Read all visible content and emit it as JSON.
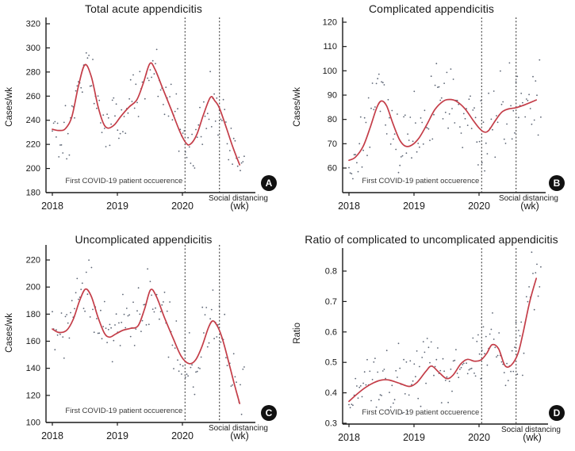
{
  "figure": {
    "background": "#ffffff"
  },
  "colors": {
    "trend_line": "#c43d48",
    "scatter_point": "#4b5566",
    "axis": "#1a1a1a",
    "event_line": "#2b2b2b",
    "badge_bg": "#111111",
    "badge_fg": "#ffffff",
    "text": "#1a1a1a"
  },
  "chart_data": [
    {
      "id": "panel-a",
      "badge": "A",
      "type": "scatter+smoothed-line",
      "title": "Total acute appendicitis",
      "ylabel": "Cases/wk",
      "x_unit_label": "(wk)",
      "xtick_values": [
        2018,
        2019,
        2020
      ],
      "xtick_labels": [
        "2018",
        "2019",
        "2020"
      ],
      "ylim": [
        180,
        320
      ],
      "ytick_values": [
        180,
        200,
        220,
        240,
        260,
        280,
        300,
        320
      ],
      "ytick_labels": [
        "180",
        "200",
        "220",
        "240",
        "260",
        "280",
        "300",
        "320"
      ],
      "x_range_data": [
        2018.0,
        2020.95
      ],
      "legend": "none",
      "grid": false,
      "events": [
        {
          "x": 2020.04,
          "label": "First COVID-19 patient occuerence",
          "label_position": "inside-left-of-line"
        },
        {
          "x": 2020.57,
          "label": "Social distancing",
          "label_position": "below-axis-right"
        }
      ],
      "trend_line": {
        "name": "smoothed weekly trend",
        "points": [
          [
            2018.0,
            232.5
          ],
          [
            2018.1,
            231.5
          ],
          [
            2018.2,
            233
          ],
          [
            2018.3,
            243
          ],
          [
            2018.4,
            268
          ],
          [
            2018.5,
            286
          ],
          [
            2018.6,
            276
          ],
          [
            2018.7,
            252
          ],
          [
            2018.78,
            238
          ],
          [
            2018.85,
            233.5
          ],
          [
            2018.95,
            236
          ],
          [
            2019.05,
            243
          ],
          [
            2019.18,
            251
          ],
          [
            2019.3,
            257
          ],
          [
            2019.4,
            271
          ],
          [
            2019.5,
            287
          ],
          [
            2019.58,
            282
          ],
          [
            2019.7,
            266
          ],
          [
            2019.82,
            250
          ],
          [
            2019.95,
            232
          ],
          [
            2020.05,
            221.5
          ],
          [
            2020.12,
            220
          ],
          [
            2020.22,
            228
          ],
          [
            2020.32,
            244
          ],
          [
            2020.43,
            259
          ],
          [
            2020.5,
            256
          ],
          [
            2020.57,
            250
          ],
          [
            2020.68,
            233
          ],
          [
            2020.78,
            217
          ],
          [
            2020.88,
            203
          ]
        ]
      },
      "scatter": {
        "name": "weekly case counts",
        "count": 148,
        "noise_sd": 12,
        "seed": 101,
        "clamp": [
          183,
          321
        ]
      }
    },
    {
      "id": "panel-b",
      "badge": "B",
      "type": "scatter+smoothed-line",
      "title": "Complicated appendicitis",
      "ylabel": "Cases/wk",
      "x_unit_label": "(wk)",
      "xtick_values": [
        2018,
        2019,
        2020
      ],
      "xtick_labels": [
        "2018",
        "2019",
        "2020"
      ],
      "ylim": [
        50,
        122
      ],
      "ytick_values": [
        60,
        70,
        80,
        90,
        100,
        110,
        120
      ],
      "ytick_labels": [
        "60",
        "70",
        "80",
        "90",
        "100",
        "110",
        "120"
      ],
      "x_range_data": [
        2018.0,
        2020.95
      ],
      "legend": "none",
      "grid": false,
      "events": [
        {
          "x": 2020.04,
          "label": "First COVID-19 patient occuerence",
          "label_position": "inside-left-of-line"
        },
        {
          "x": 2020.57,
          "label": "Social distancing",
          "label_position": "below-axis-right"
        }
      ],
      "trend_line": {
        "name": "smoothed weekly trend",
        "points": [
          [
            2018.0,
            63.2
          ],
          [
            2018.1,
            64.5
          ],
          [
            2018.22,
            69
          ],
          [
            2018.33,
            77
          ],
          [
            2018.43,
            85
          ],
          [
            2018.5,
            87.6
          ],
          [
            2018.58,
            85.5
          ],
          [
            2018.68,
            78
          ],
          [
            2018.78,
            71.5
          ],
          [
            2018.87,
            69
          ],
          [
            2018.97,
            69.5
          ],
          [
            2019.08,
            72.5
          ],
          [
            2019.2,
            78
          ],
          [
            2019.32,
            84
          ],
          [
            2019.45,
            87.5
          ],
          [
            2019.55,
            88.2
          ],
          [
            2019.65,
            87.5
          ],
          [
            2019.78,
            84.5
          ],
          [
            2019.9,
            80
          ],
          [
            2020.0,
            76.5
          ],
          [
            2020.08,
            74.8
          ],
          [
            2020.15,
            75.5
          ],
          [
            2020.25,
            79.5
          ],
          [
            2020.35,
            83
          ],
          [
            2020.45,
            84.3
          ],
          [
            2020.57,
            84.8
          ],
          [
            2020.7,
            86
          ],
          [
            2020.88,
            88
          ]
        ]
      },
      "scatter": {
        "name": "weekly case counts",
        "count": 148,
        "noise_sd": 8,
        "seed": 202,
        "clamp": [
          53,
          120
        ]
      }
    },
    {
      "id": "panel-c",
      "badge": "C",
      "type": "scatter+smoothed-line",
      "title": "Uncomplicated appendicitis",
      "ylabel": "Cases/wk",
      "x_unit_label": "(wk)",
      "xtick_values": [
        2018,
        2019,
        2020
      ],
      "xtick_labels": [
        "2018",
        "2019",
        "2020"
      ],
      "ylim": [
        100,
        220
      ],
      "ytick_values": [
        100,
        120,
        140,
        160,
        180,
        200,
        220
      ],
      "ytick_labels": [
        "100",
        "120",
        "140",
        "160",
        "180",
        "200",
        "220"
      ],
      "x_range_data": [
        2018.0,
        2020.95
      ],
      "legend": "none",
      "grid": false,
      "events": [
        {
          "x": 2020.04,
          "label": "First COVID-19 patient occuerence",
          "label_position": "inside-left-of-line"
        },
        {
          "x": 2020.57,
          "label": "Social distancing",
          "label_position": "below-axis-right"
        }
      ],
      "trend_line": {
        "name": "smoothed weekly trend",
        "points": [
          [
            2018.0,
            169
          ],
          [
            2018.1,
            166.5
          ],
          [
            2018.22,
            168
          ],
          [
            2018.32,
            176
          ],
          [
            2018.42,
            190
          ],
          [
            2018.51,
            198.5
          ],
          [
            2018.6,
            193
          ],
          [
            2018.7,
            178
          ],
          [
            2018.8,
            166
          ],
          [
            2018.88,
            163
          ],
          [
            2018.98,
            165.5
          ],
          [
            2019.08,
            168
          ],
          [
            2019.2,
            169.5
          ],
          [
            2019.32,
            171.5
          ],
          [
            2019.42,
            184
          ],
          [
            2019.51,
            198
          ],
          [
            2019.6,
            193
          ],
          [
            2019.72,
            178
          ],
          [
            2019.85,
            163
          ],
          [
            2019.98,
            149
          ],
          [
            2020.1,
            143.5
          ],
          [
            2020.2,
            146
          ],
          [
            2020.3,
            156
          ],
          [
            2020.4,
            170
          ],
          [
            2020.47,
            175
          ],
          [
            2020.55,
            170
          ],
          [
            2020.62,
            161
          ],
          [
            2020.72,
            143
          ],
          [
            2020.8,
            128
          ],
          [
            2020.88,
            114
          ]
        ]
      },
      "scatter": {
        "name": "weekly case counts",
        "count": 148,
        "noise_sd": 11,
        "seed": 303,
        "clamp": [
          106,
          227
        ]
      }
    },
    {
      "id": "panel-d",
      "badge": "D",
      "type": "scatter+smoothed-line",
      "title": "Ratio of complicated to uncomplicated appendicitis",
      "ylabel": "Ratio",
      "x_unit_label": "(wk)",
      "xtick_values": [
        2018,
        2019,
        2020
      ],
      "xtick_labels": [
        "2018",
        "2019",
        "2020"
      ],
      "ylim": [
        0.3,
        0.87
      ],
      "ytick_values": [
        0.3,
        0.4,
        0.5,
        0.6,
        0.7,
        0.8
      ],
      "ytick_labels": [
        "0.3",
        "0.4",
        "0.5",
        "0.6",
        "0.7",
        "0.8"
      ],
      "x_range_data": [
        2018.0,
        2020.95
      ],
      "legend": "none",
      "grid": false,
      "events": [
        {
          "x": 2020.04,
          "label": "First COVID-19 patient occuerence",
          "label_position": "inside-left-of-line"
        },
        {
          "x": 2020.57,
          "label": "Social distancing",
          "label_position": "below-axis-right"
        }
      ],
      "trend_line": {
        "name": "smoothed weekly trend",
        "points": [
          [
            2018.0,
            0.372
          ],
          [
            2018.12,
            0.395
          ],
          [
            2018.25,
            0.417
          ],
          [
            2018.38,
            0.433
          ],
          [
            2018.5,
            0.442
          ],
          [
            2018.62,
            0.442
          ],
          [
            2018.78,
            0.431
          ],
          [
            2018.93,
            0.421
          ],
          [
            2019.05,
            0.435
          ],
          [
            2019.18,
            0.47
          ],
          [
            2019.27,
            0.488
          ],
          [
            2019.38,
            0.468
          ],
          [
            2019.5,
            0.447
          ],
          [
            2019.6,
            0.458
          ],
          [
            2019.72,
            0.495
          ],
          [
            2019.82,
            0.51
          ],
          [
            2019.93,
            0.504
          ],
          [
            2020.03,
            0.508
          ],
          [
            2020.12,
            0.53
          ],
          [
            2020.2,
            0.558
          ],
          [
            2020.3,
            0.545
          ],
          [
            2020.4,
            0.489
          ],
          [
            2020.5,
            0.492
          ],
          [
            2020.6,
            0.53
          ],
          [
            2020.68,
            0.6
          ],
          [
            2020.78,
            0.7
          ],
          [
            2020.88,
            0.776
          ]
        ]
      },
      "scatter": {
        "name": "weekly ratio",
        "count": 148,
        "noise_sd": 0.052,
        "seed": 404,
        "clamp": [
          0.315,
          0.865
        ]
      }
    }
  ]
}
